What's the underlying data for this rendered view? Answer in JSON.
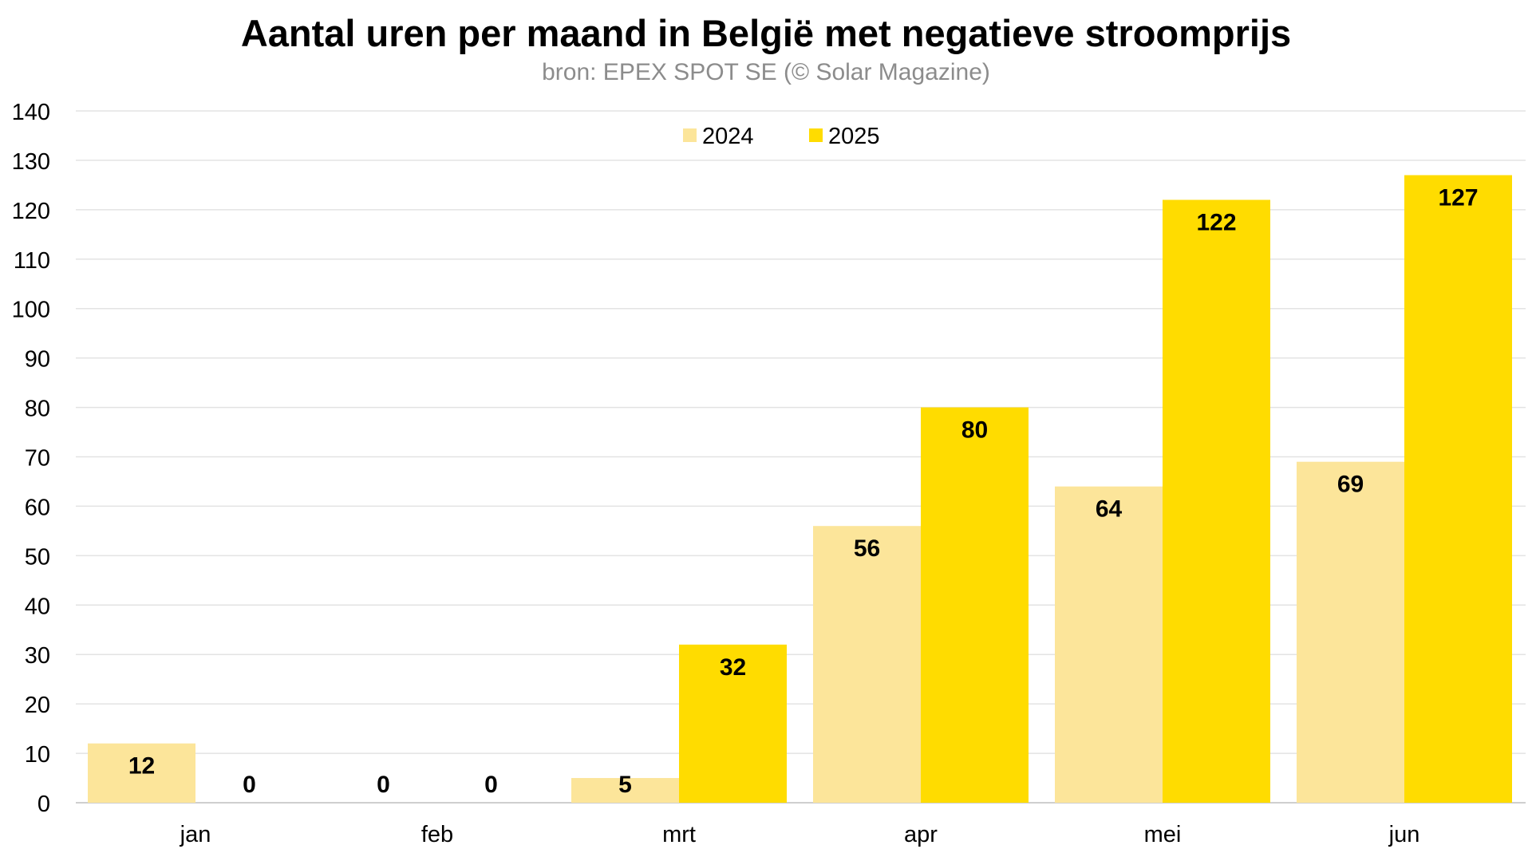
{
  "chart_data": {
    "type": "bar",
    "title": "Aantal uren per maand in België met negatieve stroomprijs",
    "subtitle": "bron: EPEX SPOT SE (© Solar Magazine)",
    "xlabel": "",
    "ylabel": "",
    "categories": [
      "jan",
      "feb",
      "mrt",
      "apr",
      "mei",
      "jun"
    ],
    "series": [
      {
        "name": "2024",
        "color": "#fce59a",
        "values": [
          12,
          0,
          5,
          56,
          64,
          69
        ]
      },
      {
        "name": "2025",
        "color": "#ffdc00",
        "values": [
          0,
          0,
          32,
          80,
          122,
          127
        ]
      }
    ],
    "ylim": [
      0,
      140
    ],
    "yticks": [
      0,
      10,
      20,
      30,
      40,
      50,
      60,
      70,
      80,
      90,
      100,
      110,
      120,
      130,
      140
    ],
    "grid": true,
    "legend_position": "top-center",
    "data_labels": true
  }
}
